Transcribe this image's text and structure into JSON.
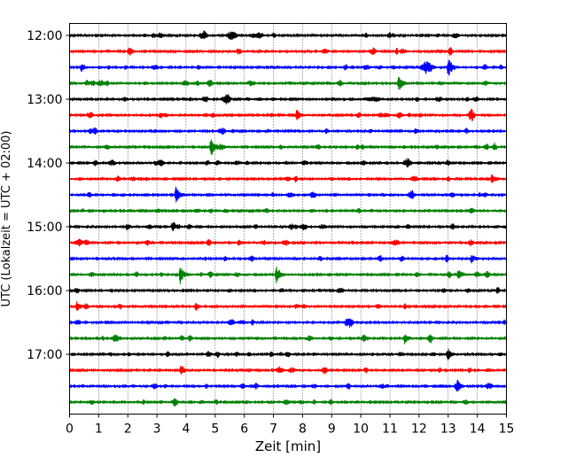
{
  "chart_data": {
    "type": "line",
    "title": "",
    "xlabel": "Zeit  [min]",
    "ylabel": "UTC (Lokalzeit = UTC + 02:00)",
    "xlim": [
      0,
      15
    ],
    "x_ticks": [
      "0",
      "1",
      "2",
      "3",
      "4",
      "5",
      "6",
      "7",
      "8",
      "9",
      "10",
      "11",
      "12",
      "13",
      "14",
      "15"
    ],
    "y_ticks": [
      "12:00",
      "13:00",
      "14:00",
      "15:00",
      "16:00",
      "17:00"
    ],
    "grid": "vertical-dotted",
    "rows_per_hour": 4,
    "row_minutes": 15,
    "row_count": 24,
    "row_colors": [
      "#000000",
      "#ff0000",
      "#0000ff",
      "#008000"
    ],
    "series": [
      {
        "start": "12:00",
        "events": []
      },
      {
        "start": "12:15",
        "events": []
      },
      {
        "start": "12:30",
        "events": [
          {
            "t": 0.4,
            "amp": 5
          },
          {
            "t": 12.2,
            "amp": 9
          },
          {
            "t": 13.0,
            "amp": 12
          }
        ]
      },
      {
        "start": "12:45",
        "events": [
          {
            "t": 11.3,
            "amp": 9
          }
        ]
      },
      {
        "start": "13:00",
        "events": []
      },
      {
        "start": "13:15",
        "events": [
          {
            "t": 7.8,
            "amp": 6
          }
        ]
      },
      {
        "start": "13:30",
        "events": []
      },
      {
        "start": "13:45",
        "events": [
          {
            "t": 4.85,
            "amp": 11
          }
        ]
      },
      {
        "start": "14:00",
        "events": []
      },
      {
        "start": "14:15",
        "events": [
          {
            "t": 14.5,
            "amp": 6
          }
        ]
      },
      {
        "start": "14:30",
        "events": [
          {
            "t": 3.65,
            "amp": 11
          }
        ]
      },
      {
        "start": "14:45",
        "events": []
      },
      {
        "start": "15:00",
        "events": [
          {
            "t": 1.95,
            "amp": 4
          }
        ]
      },
      {
        "start": "15:15",
        "events": [
          {
            "t": 5.8,
            "amp": 4
          }
        ]
      },
      {
        "start": "15:30",
        "events": [
          {
            "t": 13.8,
            "amp": 5
          }
        ]
      },
      {
        "start": "15:45",
        "events": [
          {
            "t": 3.8,
            "amp": 10
          },
          {
            "t": 7.1,
            "amp": 10
          },
          {
            "t": 13.35,
            "amp": 6
          }
        ]
      },
      {
        "start": "16:00",
        "events": []
      },
      {
        "start": "16:15",
        "events": [
          {
            "t": 0.25,
            "amp": 4
          }
        ]
      },
      {
        "start": "16:30",
        "events": []
      },
      {
        "start": "16:45",
        "events": [
          {
            "t": 11.5,
            "amp": 6
          }
        ]
      },
      {
        "start": "17:00",
        "events": [
          {
            "t": 13.0,
            "amp": 5
          }
        ]
      },
      {
        "start": "17:15",
        "events": []
      },
      {
        "start": "17:30",
        "events": []
      },
      {
        "start": "17:45",
        "events": []
      }
    ]
  }
}
